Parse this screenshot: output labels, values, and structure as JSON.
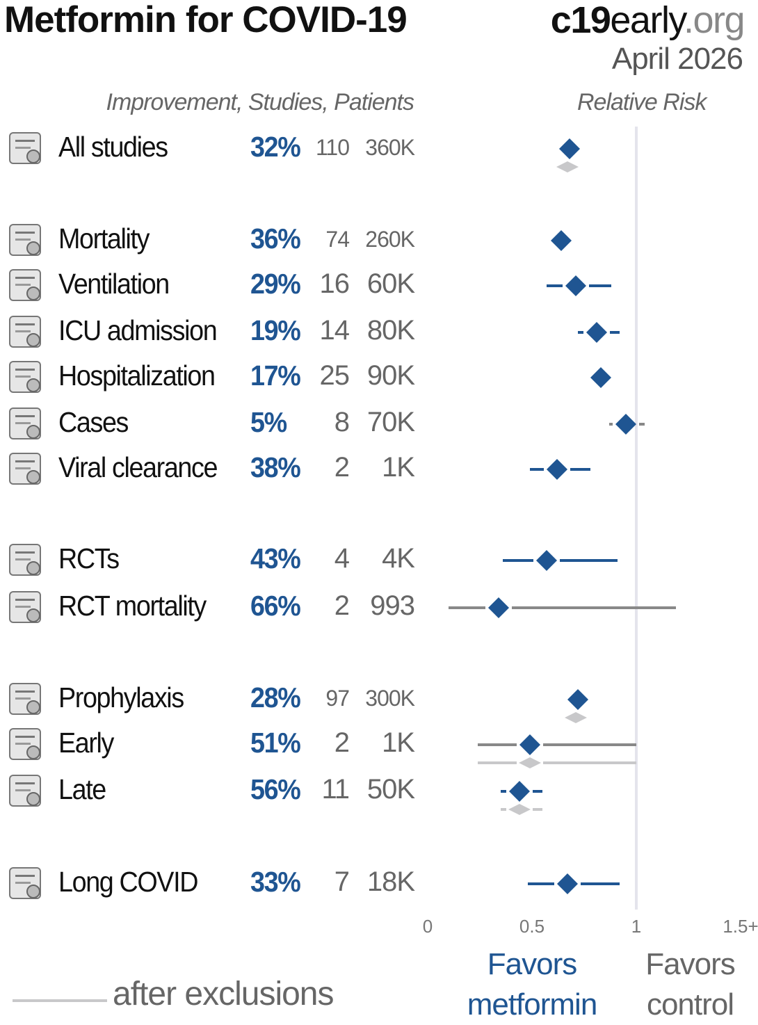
{
  "header": {
    "title": "Metformin for COVID-19",
    "brand_part1": "c19",
    "brand_part2": "early",
    "brand_part3": ".org",
    "date": "April 2026",
    "columns_label": "Improvement, Studies, Patients",
    "rr_label": "Relative Risk"
  },
  "colors": {
    "accent": "#1f5592",
    "ci_nonsig": "#888888",
    "after_exclusions": "#c8c8ca",
    "null_line": "#e4e4ec"
  },
  "chart_data": {
    "type": "forest",
    "xlabel": "Relative Risk",
    "xlim": [
      0,
      1.5
    ],
    "xticks": [
      "0",
      "0.5",
      "1",
      "1.5+"
    ],
    "null_value": 1,
    "rows": [
      {
        "label": "All studies",
        "icon": "magnifier-document-icon",
        "improvement": "32%",
        "studies": "110",
        "patients": "360K",
        "small": true,
        "rr": 0.68,
        "ci": null,
        "after_exclusions": {
          "rr": 0.67,
          "ci": null
        }
      },
      {
        "label": "Mortality",
        "icon": "tombstone-icon",
        "improvement": "36%",
        "studies": "74",
        "patients": "260K",
        "small": true,
        "rr": 0.64,
        "ci": null
      },
      {
        "label": "Ventilation",
        "icon": "ventilator-icon",
        "improvement": "29%",
        "studies": "16",
        "patients": "60K",
        "rr": 0.71,
        "ci": [
          0.57,
          0.88
        ]
      },
      {
        "label": "ICU admission",
        "icon": "icu-bed-icon",
        "improvement": "19%",
        "studies": "14",
        "patients": "80K",
        "rr": 0.81,
        "ci": [
          0.72,
          0.92
        ]
      },
      {
        "label": "Hospitalization",
        "icon": "hospital-icon",
        "improvement": "17%",
        "studies": "25",
        "patients": "90K",
        "rr": 0.83,
        "ci": null
      },
      {
        "label": "Cases",
        "icon": "sick-person-icon",
        "improvement": "5%",
        "studies": "8",
        "patients": "70K",
        "rr": 0.95,
        "ci": [
          0.87,
          1.04
        ]
      },
      {
        "label": "Viral clearance",
        "icon": "virus-icon",
        "improvement": "38%",
        "studies": "2",
        "patients": "1K",
        "rr": 0.62,
        "ci": [
          0.49,
          0.78
        ]
      },
      {
        "label": "RCTs",
        "icon": "ab-test-icon",
        "improvement": "43%",
        "studies": "4",
        "patients": "4K",
        "rr": 0.57,
        "ci": [
          0.36,
          0.91
        ]
      },
      {
        "label": "RCT mortality",
        "icon": "tombstone-icon",
        "improvement": "66%",
        "studies": "2",
        "patients": "993",
        "rr": 0.34,
        "ci": [
          0.1,
          1.19
        ]
      },
      {
        "label": "Prophylaxis",
        "icon": "shield-pill-icon",
        "improvement": "28%",
        "studies": "97",
        "patients": "300K",
        "small": true,
        "rr": 0.72,
        "ci": null,
        "after_exclusions": {
          "rr": 0.71,
          "ci": null
        }
      },
      {
        "label": "Early",
        "icon": "clock-pill-icon",
        "improvement": "51%",
        "studies": "2",
        "patients": "1K",
        "rr": 0.49,
        "ci": [
          0.24,
          1.0
        ],
        "after_exclusions": {
          "rr": 0.49,
          "ci": [
            0.24,
            1.0
          ]
        }
      },
      {
        "label": "Late",
        "icon": "bed-syringe-icon",
        "improvement": "56%",
        "studies": "11",
        "patients": "50K",
        "rr": 0.44,
        "ci": [
          0.35,
          0.55
        ],
        "after_exclusions": {
          "rr": 0.44,
          "ci": [
            0.35,
            0.55
          ]
        }
      },
      {
        "label": "Long COVID",
        "icon": "long-covid-icon",
        "improvement": "33%",
        "studies": "7",
        "patients": "18K",
        "rr": 0.67,
        "ci": [
          0.48,
          0.92
        ]
      }
    ]
  },
  "footer": {
    "after_exclusions": "after exclusions",
    "favors_left_1": "Favors",
    "favors_left_2": "metformin",
    "favors_right_1": "Favors",
    "favors_right_2": "control"
  }
}
